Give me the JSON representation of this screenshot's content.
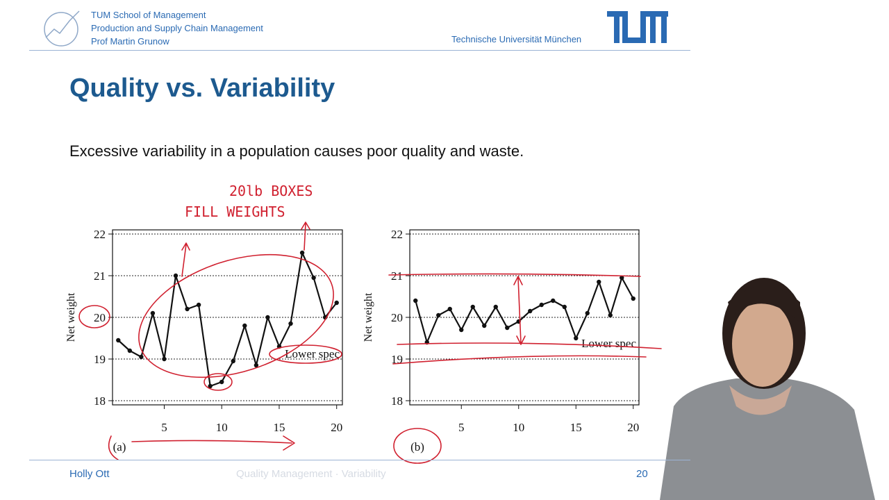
{
  "header": {
    "org_line1": "TUM School of Management",
    "org_line2": "Production and Supply Chain Management",
    "org_line3": "Prof Martin Grunow",
    "university": "Technische Universität München"
  },
  "slide": {
    "title": "Quality vs. Variability",
    "body": "Excessive variability in a population causes poor quality and waste."
  },
  "annotations": {
    "line1": "20lb BOXES",
    "line2": "FILL WEIGHTS"
  },
  "footer": {
    "author": "Holly Ott",
    "course": "Quality Management · Variability",
    "page": "20"
  },
  "colors": {
    "accent": "#2a6ab3",
    "title": "#1d5a8f",
    "annotation": "#d0202f"
  },
  "chart_data": [
    {
      "type": "line",
      "panel_label": "(a)",
      "ylabel": "Net weight",
      "ylim": [
        18,
        22
      ],
      "xlim": [
        0.5,
        20.5
      ],
      "yticks": [
        18,
        19,
        20,
        21,
        22
      ],
      "xticks": [
        5,
        10,
        15,
        20
      ],
      "grid": "horizontal dotted",
      "annotation_text": "Lower spec",
      "annotation_value": 19,
      "x": [
        1,
        2,
        3,
        4,
        5,
        6,
        7,
        8,
        9,
        10,
        11,
        12,
        13,
        14,
        15,
        16,
        17,
        18,
        19,
        20
      ],
      "values": [
        19.45,
        19.2,
        19.05,
        20.1,
        19.0,
        21.0,
        20.2,
        20.3,
        18.35,
        18.45,
        18.95,
        19.8,
        18.85,
        20.0,
        19.3,
        19.85,
        21.55,
        20.95,
        20.0,
        20.35
      ]
    },
    {
      "type": "line",
      "panel_label": "(b)",
      "ylabel": "Net weight",
      "ylim": [
        18,
        22
      ],
      "xlim": [
        0.5,
        20.5
      ],
      "yticks": [
        18,
        19,
        20,
        21,
        22
      ],
      "xticks": [
        5,
        10,
        15,
        20
      ],
      "grid": "horizontal dotted",
      "annotation_text": "Lower spec",
      "annotation_value": 19.25,
      "x": [
        1,
        2,
        3,
        4,
        5,
        6,
        7,
        8,
        9,
        10,
        11,
        12,
        13,
        14,
        15,
        16,
        17,
        18,
        19,
        20
      ],
      "values": [
        20.4,
        19.4,
        20.05,
        20.2,
        19.7,
        20.25,
        19.8,
        20.25,
        19.75,
        19.9,
        20.15,
        20.3,
        20.4,
        20.25,
        19.5,
        20.1,
        20.85,
        20.05,
        20.95,
        20.45
      ]
    }
  ]
}
